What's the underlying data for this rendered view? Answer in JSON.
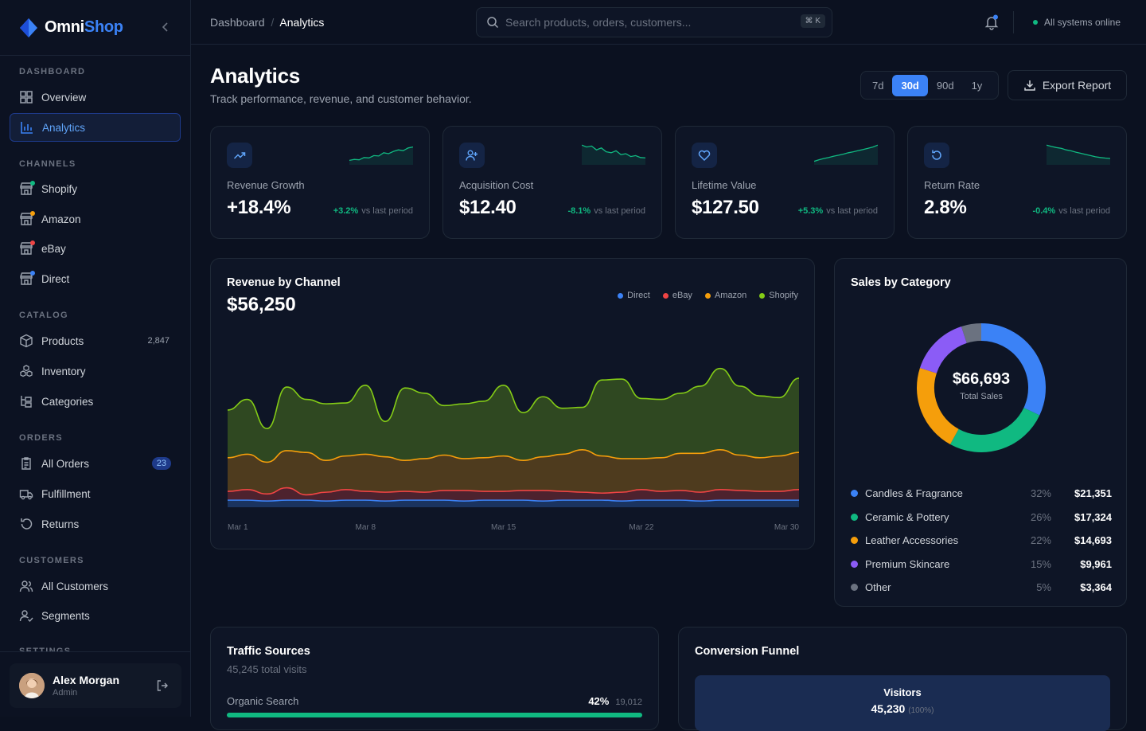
{
  "brand": {
    "name_a": "Omni",
    "name_b": "Shop"
  },
  "sidebar": {
    "sections": [
      "DASHBOARD",
      "CHANNELS",
      "CATALOG",
      "ORDERS",
      "CUSTOMERS",
      "SETTINGS"
    ],
    "items": [
      {
        "label": "Overview",
        "icon": "grid-icon"
      },
      {
        "label": "Analytics",
        "icon": "bar-chart-icon",
        "active": true
      },
      {
        "label": "Shopify",
        "icon": "store-icon",
        "dot": "#10b981"
      },
      {
        "label": "Amazon",
        "icon": "store-icon",
        "dot": "#f59e0b"
      },
      {
        "label": "eBay",
        "icon": "store-icon",
        "dot": "#ef4444"
      },
      {
        "label": "Direct",
        "icon": "store-icon",
        "dot": "#3b82f6"
      },
      {
        "label": "Products",
        "icon": "box-icon",
        "count": "2,847"
      },
      {
        "label": "Inventory",
        "icon": "boxes-icon"
      },
      {
        "label": "Categories",
        "icon": "folder-tree-icon"
      },
      {
        "label": "All Orders",
        "icon": "clipboard-icon",
        "badge": "23"
      },
      {
        "label": "Fulfillment",
        "icon": "truck-icon"
      },
      {
        "label": "Returns",
        "icon": "rotate-icon"
      },
      {
        "label": "All Customers",
        "icon": "users-icon"
      },
      {
        "label": "Segments",
        "icon": "user-check-icon"
      }
    ],
    "user": {
      "name": "Alex Morgan",
      "role": "Admin"
    }
  },
  "topbar": {
    "crumb_root": "Dashboard",
    "crumb_sep": "/",
    "crumb_current": "Analytics",
    "search_placeholder": "Search products, orders, customers...",
    "shortcut": "⌘ K",
    "status": "All systems online"
  },
  "page": {
    "title": "Analytics",
    "subtitle": "Track performance, revenue, and customer behavior.",
    "ranges": [
      "7d",
      "30d",
      "90d",
      "1y"
    ],
    "active_range": "30d",
    "export_label": "Export Report"
  },
  "kpis": [
    {
      "label": "Revenue Growth",
      "value": "+18.4%",
      "change": "+3.2%",
      "note": "vs last period",
      "icon": "trending-up-icon",
      "spark": [
        0.15,
        0.2,
        0.18,
        0.3,
        0.28,
        0.4,
        0.38,
        0.55,
        0.5,
        0.62,
        0.7,
        0.66,
        0.8,
        0.85
      ]
    },
    {
      "label": "Acquisition Cost",
      "value": "$12.40",
      "change": "-8.1%",
      "note": "vs last period",
      "icon": "user-plus-icon",
      "spark": [
        0.95,
        0.85,
        0.9,
        0.7,
        0.8,
        0.6,
        0.55,
        0.65,
        0.45,
        0.5,
        0.35,
        0.4,
        0.3,
        0.28
      ]
    },
    {
      "label": "Lifetime Value",
      "value": "$127.50",
      "change": "+5.3%",
      "note": "vs last period",
      "icon": "heart-icon",
      "spark": [
        0.1,
        0.18,
        0.25,
        0.3,
        0.37,
        0.42,
        0.48,
        0.55,
        0.6,
        0.66,
        0.72,
        0.78,
        0.85,
        0.95
      ]
    },
    {
      "label": "Return Rate",
      "value": "2.8%",
      "change": "-0.4%",
      "note": "vs last period",
      "icon": "refresh-icon",
      "spark": [
        0.95,
        0.88,
        0.82,
        0.78,
        0.7,
        0.65,
        0.58,
        0.52,
        0.46,
        0.4,
        0.34,
        0.3,
        0.27,
        0.25
      ]
    }
  ],
  "revenue": {
    "title": "Revenue by Channel",
    "total": "$56,250",
    "chart_data": {
      "type": "area",
      "x": [
        "Mar 1",
        "Mar 2",
        "Mar 3",
        "Mar 4",
        "Mar 5",
        "Mar 6",
        "Mar 7",
        "Mar 8",
        "Mar 9",
        "Mar 10",
        "Mar 11",
        "Mar 12",
        "Mar 13",
        "Mar 14",
        "Mar 15",
        "Mar 16",
        "Mar 17",
        "Mar 18",
        "Mar 19",
        "Mar 20",
        "Mar 21",
        "Mar 22",
        "Mar 23",
        "Mar 24",
        "Mar 25",
        "Mar 26",
        "Mar 27",
        "Mar 28",
        "Mar 29",
        "Mar 30"
      ],
      "tick_labels": [
        "Mar 1",
        "Mar 8",
        "Mar 15",
        "Mar 22",
        "Mar 30"
      ],
      "ylim": [
        0,
        200
      ],
      "stacked": true,
      "series": [
        {
          "name": "Direct",
          "color": "#3b82f6",
          "values": [
            8,
            8,
            7,
            8,
            8,
            7,
            8,
            8,
            7,
            8,
            8,
            8,
            7,
            8,
            8,
            8,
            7,
            8,
            8,
            8,
            7,
            8,
            8,
            8,
            7,
            8,
            8,
            8,
            8,
            8
          ]
        },
        {
          "name": "eBay",
          "color": "#ef4444",
          "values": [
            10,
            12,
            8,
            14,
            6,
            10,
            12,
            10,
            10,
            10,
            9,
            11,
            12,
            10,
            10,
            11,
            12,
            10,
            9,
            8,
            10,
            12,
            10,
            11,
            10,
            12,
            11,
            10,
            10,
            12
          ]
        },
        {
          "name": "Amazon",
          "color": "#f59e0b",
          "values": [
            38,
            40,
            36,
            42,
            48,
            36,
            38,
            42,
            40,
            35,
            38,
            40,
            36,
            38,
            40,
            34,
            38,
            42,
            48,
            42,
            38,
            35,
            38,
            42,
            44,
            45,
            40,
            38,
            40,
            42
          ]
        },
        {
          "name": "Shopify",
          "color": "#84cc16",
          "values": [
            54,
            62,
            38,
            72,
            60,
            64,
            60,
            78,
            40,
            82,
            74,
            56,
            62,
            64,
            80,
            54,
            68,
            52,
            48,
            86,
            90,
            68,
            66,
            68,
            76,
            92,
            78,
            70,
            66,
            84
          ]
        }
      ]
    }
  },
  "sales": {
    "title": "Sales by Category",
    "total": "$66,693",
    "total_label": "Total Sales",
    "chart_data": {
      "type": "pie",
      "categories": [
        "Candles & Fragrance",
        "Ceramic & Pottery",
        "Leather Accessories",
        "Premium Skincare",
        "Other"
      ],
      "values": [
        32,
        26,
        22,
        15,
        5
      ],
      "amounts": [
        "$21,351",
        "$17,324",
        "$14,693",
        "$9,961",
        "$3,364"
      ],
      "colors": [
        "#3b82f6",
        "#10b981",
        "#f59e0b",
        "#8b5cf6",
        "#6b7280"
      ]
    }
  },
  "traffic": {
    "title": "Traffic Sources",
    "subtitle": "45,245 total visits",
    "row_label": "Organic Search",
    "row_pct": "42%",
    "row_count": "19,012",
    "row_fill": 1.0
  },
  "funnel": {
    "title": "Conversion Funnel",
    "stage": "Visitors",
    "stage_value": "45,230",
    "stage_pct": "(100%)"
  }
}
